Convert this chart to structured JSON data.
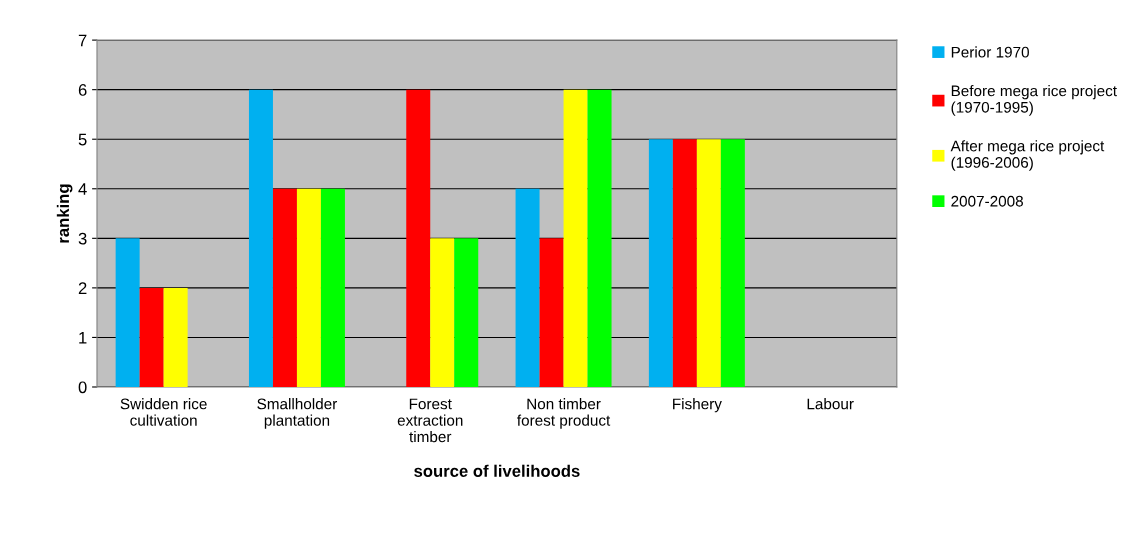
{
  "chart_data": {
    "type": "bar",
    "xlabel": "source of livelihoods",
    "ylabel": "ranking",
    "categories": [
      "Swidden rice\ncultivation",
      "Smallholder\nplantation",
      "Forest\nextraction\ntimber",
      "Non timber\nforest product",
      "Fishery",
      "Labour"
    ],
    "series": [
      {
        "name": "Perior 1970",
        "color": "#00b0f0",
        "values": [
          3,
          6,
          null,
          4,
          5,
          null
        ]
      },
      {
        "name": "Before mega rice project\n(1970-1995)",
        "color": "#ff0000",
        "values": [
          2,
          4,
          6,
          3,
          5,
          null
        ]
      },
      {
        "name": "After mega rice project\n(1996-2006)",
        "color": "#ffff00",
        "values": [
          2,
          4,
          3,
          6,
          5,
          null
        ]
      },
      {
        "name": "2007-2008",
        "color": "#00ff00",
        "values": [
          null,
          4,
          3,
          6,
          5,
          null
        ]
      }
    ],
    "ylim": [
      0,
      7
    ],
    "yticks": [
      0,
      1,
      2,
      3,
      4,
      5,
      6,
      7
    ],
    "grid": "y",
    "legend": "right"
  }
}
